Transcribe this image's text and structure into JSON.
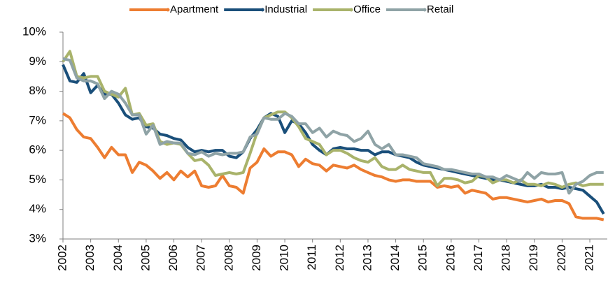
{
  "chart_data": {
    "type": "line",
    "x": [
      2002,
      2002.25,
      2002.5,
      2002.75,
      2003,
      2003.25,
      2003.5,
      2003.75,
      2004,
      2004.25,
      2004.5,
      2004.75,
      2005,
      2005.25,
      2005.5,
      2005.75,
      2006,
      2006.25,
      2006.5,
      2006.75,
      2007,
      2007.25,
      2007.5,
      2007.75,
      2008,
      2008.25,
      2008.5,
      2008.75,
      2009,
      2009.25,
      2009.5,
      2009.75,
      2010,
      2010.25,
      2010.5,
      2010.75,
      2011,
      2011.25,
      2011.5,
      2011.75,
      2012,
      2012.25,
      2012.5,
      2012.75,
      2013,
      2013.25,
      2013.5,
      2013.75,
      2014,
      2014.25,
      2014.5,
      2014.75,
      2015,
      2015.25,
      2015.5,
      2015.75,
      2016,
      2016.25,
      2016.5,
      2016.75,
      2017,
      2017.25,
      2017.5,
      2017.75,
      2018,
      2018.25,
      2018.5,
      2018.75,
      2019,
      2019.25,
      2019.5,
      2019.75,
      2020,
      2020.25,
      2020.5,
      2020.75,
      2021,
      2021.25,
      2021.5
    ],
    "series": [
      {
        "name": "Apartment",
        "color": "#ed7d31",
        "values": [
          7.25,
          7.1,
          6.7,
          6.45,
          6.4,
          6.1,
          5.75,
          6.1,
          5.85,
          5.85,
          5.25,
          5.6,
          5.5,
          5.3,
          5.05,
          5.25,
          5.0,
          5.3,
          5.1,
          5.3,
          4.8,
          4.75,
          4.8,
          5.15,
          4.8,
          4.75,
          4.55,
          5.4,
          5.6,
          6.05,
          5.8,
          5.95,
          5.95,
          5.85,
          5.45,
          5.7,
          5.55,
          5.5,
          5.3,
          5.5,
          5.45,
          5.4,
          5.5,
          5.35,
          5.25,
          5.15,
          5.1,
          5.0,
          4.95,
          5.0,
          5.0,
          4.95,
          4.95,
          4.95,
          4.75,
          4.8,
          4.75,
          4.8,
          4.55,
          4.65,
          4.6,
          4.55,
          4.35,
          4.4,
          4.4,
          4.35,
          4.3,
          4.25,
          4.3,
          4.35,
          4.25,
          4.3,
          4.3,
          4.2,
          3.75,
          3.7,
          3.7,
          3.7,
          3.65
        ]
      },
      {
        "name": "Industrial",
        "color": "#1a4f7a",
        "values": [
          8.9,
          8.35,
          8.3,
          8.6,
          7.95,
          8.2,
          7.9,
          7.9,
          7.6,
          7.2,
          7.05,
          7.1,
          6.8,
          6.75,
          6.55,
          6.5,
          6.4,
          6.35,
          6.1,
          5.95,
          6.0,
          5.95,
          6.0,
          6.0,
          5.8,
          5.75,
          5.95,
          6.4,
          6.7,
          7.1,
          7.25,
          7.15,
          6.6,
          7.0,
          6.9,
          6.6,
          6.2,
          6.0,
          5.85,
          6.05,
          6.1,
          6.05,
          6.05,
          6.0,
          6.0,
          5.85,
          5.95,
          5.95,
          5.85,
          5.8,
          5.75,
          5.6,
          5.5,
          5.45,
          5.4,
          5.35,
          5.3,
          5.25,
          5.2,
          5.15,
          5.1,
          5.05,
          5.0,
          5.0,
          4.95,
          4.9,
          4.85,
          4.8,
          4.8,
          4.85,
          4.75,
          4.75,
          4.7,
          4.75,
          4.7,
          4.65,
          4.45,
          4.25,
          3.85
        ]
      },
      {
        "name": "Office",
        "color": "#a9b36b",
        "values": [
          9.0,
          9.35,
          8.5,
          8.45,
          8.5,
          8.5,
          8.0,
          7.9,
          7.8,
          8.1,
          7.2,
          7.25,
          6.85,
          6.9,
          6.3,
          6.2,
          6.25,
          6.2,
          5.9,
          5.65,
          5.7,
          5.5,
          5.15,
          5.2,
          5.25,
          5.2,
          5.25,
          5.9,
          6.6,
          7.1,
          7.2,
          7.3,
          7.3,
          7.1,
          6.8,
          6.4,
          6.3,
          6.2,
          5.85,
          6.0,
          6.0,
          5.9,
          5.75,
          5.65,
          5.6,
          5.75,
          5.45,
          5.35,
          5.35,
          5.5,
          5.35,
          5.3,
          5.25,
          5.25,
          4.8,
          5.05,
          5.05,
          5.0,
          4.9,
          4.95,
          5.15,
          5.1,
          4.9,
          5.0,
          5.0,
          4.9,
          5.0,
          4.85,
          4.85,
          4.8,
          4.9,
          4.85,
          4.75,
          4.85,
          4.9,
          4.8,
          4.85,
          4.85,
          4.85
        ]
      },
      {
        "name": "Retail",
        "color": "#8fa3a6",
        "values": [
          9.1,
          9.05,
          8.45,
          8.35,
          8.35,
          8.25,
          7.75,
          8.0,
          7.9,
          7.6,
          7.2,
          7.2,
          6.55,
          6.85,
          6.2,
          6.3,
          6.25,
          6.25,
          5.9,
          5.85,
          5.95,
          5.8,
          5.9,
          5.85,
          5.9,
          5.9,
          5.95,
          6.45,
          6.55,
          7.1,
          7.05,
          7.05,
          7.25,
          7.15,
          6.9,
          6.9,
          6.6,
          6.75,
          6.45,
          6.65,
          6.55,
          6.5,
          6.3,
          6.4,
          6.65,
          6.2,
          6.05,
          6.2,
          5.85,
          5.85,
          5.8,
          5.75,
          5.55,
          5.5,
          5.45,
          5.35,
          5.35,
          5.3,
          5.25,
          5.2,
          5.2,
          5.1,
          5.1,
          5.0,
          5.15,
          5.05,
          4.95,
          5.25,
          5.05,
          5.25,
          5.2,
          5.2,
          5.25,
          4.55,
          4.85,
          4.95,
          5.15,
          5.25,
          5.25
        ]
      }
    ],
    "xlim": [
      2002,
      2021.63
    ],
    "xticks": [
      2002,
      2003,
      2004,
      2005,
      2006,
      2007,
      2008,
      2009,
      2010,
      2011,
      2012,
      2013,
      2014,
      2015,
      2016,
      2017,
      2018,
      2019,
      2020,
      2021
    ],
    "ylim": [
      3,
      10
    ],
    "yticks": [
      {
        "value": 3,
        "label": "3%"
      },
      {
        "value": 4,
        "label": "4%"
      },
      {
        "value": 5,
        "label": "5%"
      },
      {
        "value": 6,
        "label": "6%"
      },
      {
        "value": 7,
        "label": "7%"
      },
      {
        "value": 8,
        "label": "8%"
      },
      {
        "value": 9,
        "label": "9%"
      },
      {
        "value": 10,
        "label": "10%"
      }
    ],
    "grid": false,
    "legend": "top"
  }
}
